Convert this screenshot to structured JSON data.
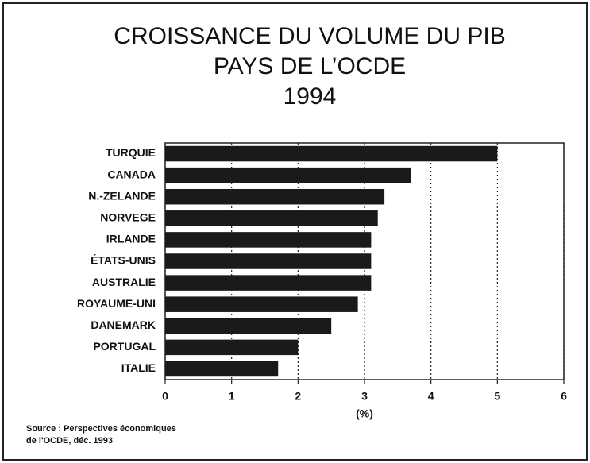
{
  "chart_data": {
    "type": "barh",
    "title_lines": [
      "CROISSANCE DU VOLUME DU PIB",
      "PAYS DE L’OCDE",
      "1994"
    ],
    "categories": [
      "TURQUIE",
      "CANADA",
      "N.-ZELANDE",
      "NORVEGE",
      "IRLANDE",
      "ÉTATS-UNIS",
      "AUSTRALIE",
      "ROYAUME-UNI",
      "DANEMARK",
      "PORTUGAL",
      "ITALIE"
    ],
    "values": [
      5.0,
      3.7,
      3.3,
      3.2,
      3.1,
      3.1,
      3.1,
      2.9,
      2.5,
      2.0,
      1.7
    ],
    "color": "#1a1a1a",
    "xlim": [
      0,
      6
    ],
    "xticks": [
      0,
      1,
      2,
      3,
      4,
      5,
      6
    ],
    "xlabel": "(%)",
    "grid": true,
    "source": [
      "Source : Perspectives économiques",
      "de l'OCDE, déc. 1993"
    ]
  }
}
